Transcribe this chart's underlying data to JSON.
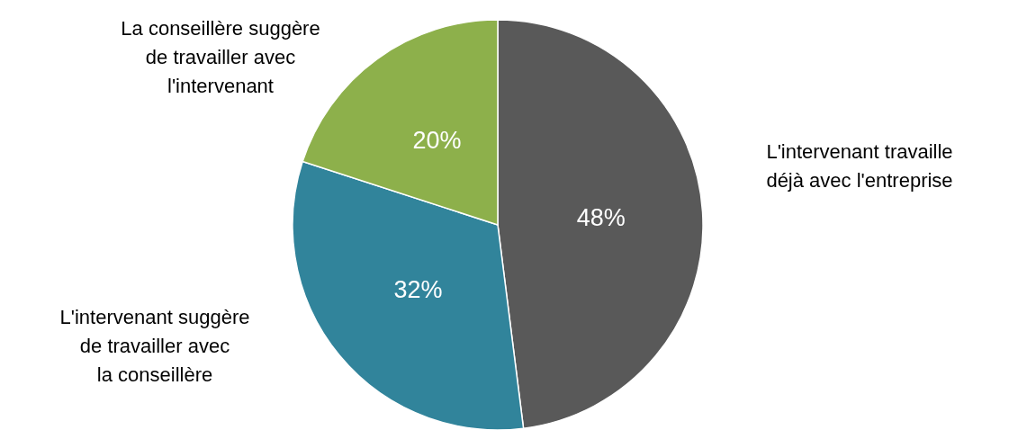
{
  "chart_data": {
    "type": "pie",
    "categories": [
      "L'intervenant travaille déjà avec l'entreprise",
      "L'intervenant suggère de travailler avec la conseillère",
      "La conseillère suggère de travailler avec l'intervenant"
    ],
    "values": [
      48,
      32,
      20
    ],
    "colors": [
      "#595959",
      "#31849b",
      "#8db04b"
    ],
    "value_labels": [
      "48%",
      "32%",
      "20%"
    ]
  }
}
